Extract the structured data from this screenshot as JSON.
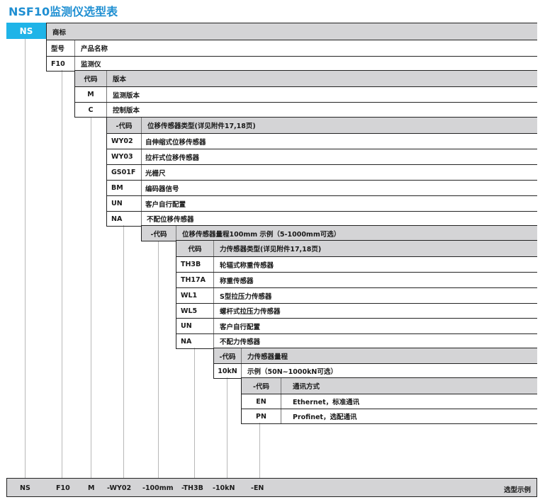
{
  "title": "NSF10监测仪选型表",
  "brand": {
    "code": "NS",
    "label": "商标"
  },
  "model": {
    "header": [
      "型号",
      "产品名称"
    ],
    "rows": [
      [
        "F10",
        "监测仪"
      ]
    ]
  },
  "version": {
    "header": [
      "代码",
      "版本"
    ],
    "rows": [
      [
        "M",
        "监测版本"
      ],
      [
        "C",
        "控制版本"
      ]
    ]
  },
  "displacement_sensor": {
    "header": [
      "-代码",
      "位移传感器类型(详见附件17,18页)"
    ],
    "rows": [
      [
        "WY02",
        "自伸缩式位移传感器"
      ],
      [
        "WY03",
        "拉杆式位移传感器"
      ],
      [
        "GS01F",
        "光栅尺"
      ],
      [
        "BM",
        "编码器信号"
      ],
      [
        "UN",
        "客户自行配置"
      ],
      [
        "NA",
        "不配位移传感器"
      ]
    ]
  },
  "displacement_range": {
    "header": [
      "-代码",
      "位移传感器量程100mm  示例（5-1000mm可选）"
    ]
  },
  "force_sensor": {
    "header": [
      "代码",
      "力传感器类型(详见附件17,18页)"
    ],
    "rows": [
      [
        "TH3B",
        "轮辐式称重传感器"
      ],
      [
        "TH17A",
        "称重传感器"
      ],
      [
        "WL1",
        "S型拉压力传感器"
      ],
      [
        "WL5",
        "螺杆式拉压力传感器"
      ],
      [
        "UN",
        "客户自行配置"
      ],
      [
        "NA",
        "不配力传感器"
      ]
    ]
  },
  "force_range": {
    "header": [
      "-代码",
      "力传感器量程"
    ],
    "rows": [
      [
        "10kN",
        "示例（50N~1000kN可选）"
      ]
    ]
  },
  "communication": {
    "header": [
      "-代码",
      "通讯方式"
    ],
    "rows": [
      [
        "EN",
        "Ethernet，标准通讯"
      ],
      [
        "PN",
        "Profinet，选配通讯"
      ]
    ]
  },
  "example": {
    "parts": [
      "NS",
      "F10",
      "M",
      "-WY02",
      "-100mm",
      "-TH3B",
      "-10kN",
      "-EN"
    ],
    "label": "选型示例"
  },
  "colors": {
    "accent": "#1fb4e8",
    "header_bg": "#d4d4d6",
    "title": "#1f8fd2"
  }
}
